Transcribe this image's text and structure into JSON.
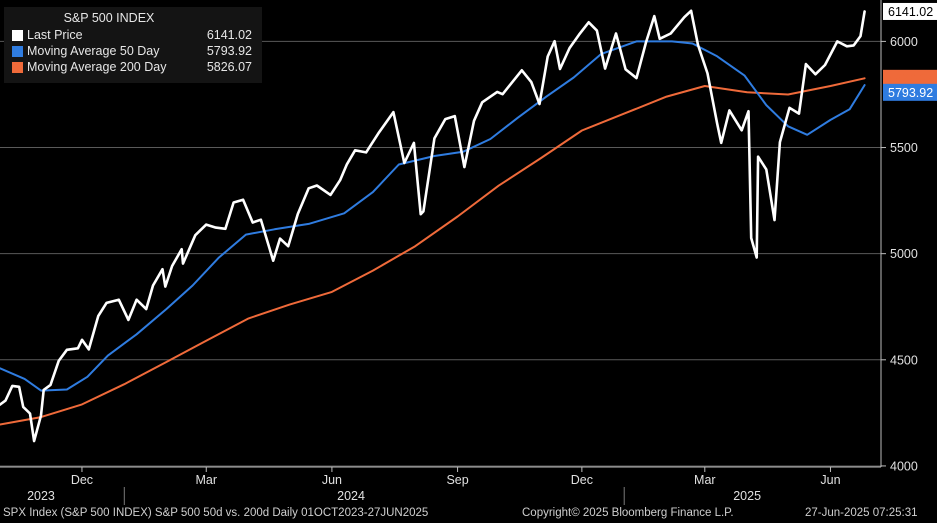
{
  "chart_data": {
    "type": "line",
    "title": "S&P 500 INDEX",
    "yticks": [
      4000,
      4500,
      5000,
      5500,
      6000
    ],
    "ylim": [
      3995,
      6195
    ],
    "xlim": [
      "2023-10-02",
      "2025-07-08"
    ],
    "grid": true,
    "legend_position": "top-left",
    "month_labels": [
      {
        "label": "Dec",
        "date": "2023-12-01"
      },
      {
        "label": "Mar",
        "date": "2024-03-01"
      },
      {
        "label": "Jun",
        "date": "2024-06-01"
      },
      {
        "label": "Sep",
        "date": "2024-09-01"
      },
      {
        "label": "Dec",
        "date": "2024-12-01"
      },
      {
        "label": "Mar",
        "date": "2025-03-01"
      },
      {
        "label": "Jun",
        "date": "2025-06-01"
      }
    ],
    "year_labels": [
      {
        "label": "2023",
        "date": "2023-11-01"
      },
      {
        "label": "2024",
        "date": "2024-06-15"
      },
      {
        "label": "2025",
        "date": "2025-04-01"
      }
    ],
    "year_separators": [
      "2024-01-01",
      "2025-01-01"
    ],
    "series": [
      {
        "name": "Last Price",
        "color": "#ffffff",
        "last_value_label": "6141.02",
        "points": [
          [
            "2023-10-02",
            4289
          ],
          [
            "2023-10-06",
            4308
          ],
          [
            "2023-10-11",
            4377
          ],
          [
            "2023-10-16",
            4373
          ],
          [
            "2023-10-19",
            4278
          ],
          [
            "2023-10-24",
            4247
          ],
          [
            "2023-10-27",
            4117
          ],
          [
            "2023-11-01",
            4238
          ],
          [
            "2023-11-03",
            4358
          ],
          [
            "2023-11-08",
            4382
          ],
          [
            "2023-11-14",
            4495
          ],
          [
            "2023-11-20",
            4547
          ],
          [
            "2023-11-28",
            4554
          ],
          [
            "2023-12-01",
            4594
          ],
          [
            "2023-12-06",
            4549
          ],
          [
            "2023-12-13",
            4707
          ],
          [
            "2023-12-19",
            4768
          ],
          [
            "2023-12-28",
            4783
          ],
          [
            "2024-01-04",
            4688
          ],
          [
            "2024-01-10",
            4783
          ],
          [
            "2024-01-17",
            4739
          ],
          [
            "2024-01-22",
            4850
          ],
          [
            "2024-01-29",
            4927
          ],
          [
            "2024-01-31",
            4845
          ],
          [
            "2024-02-05",
            4942
          ],
          [
            "2024-02-12",
            5021
          ],
          [
            "2024-02-13",
            4953
          ],
          [
            "2024-02-22",
            5087
          ],
          [
            "2024-03-01",
            5137
          ],
          [
            "2024-03-08",
            5123
          ],
          [
            "2024-03-15",
            5117
          ],
          [
            "2024-03-21",
            5241
          ],
          [
            "2024-03-28",
            5254
          ],
          [
            "2024-04-04",
            5147
          ],
          [
            "2024-04-10",
            5160
          ],
          [
            "2024-04-19",
            4967
          ],
          [
            "2024-04-24",
            5071
          ],
          [
            "2024-04-30",
            5035
          ],
          [
            "2024-05-07",
            5187
          ],
          [
            "2024-05-15",
            5308
          ],
          [
            "2024-05-21",
            5321
          ],
          [
            "2024-05-31",
            5277
          ],
          [
            "2024-06-07",
            5346
          ],
          [
            "2024-06-12",
            5421
          ],
          [
            "2024-06-18",
            5487
          ],
          [
            "2024-06-26",
            5477
          ],
          [
            "2024-07-05",
            5567
          ],
          [
            "2024-07-16",
            5667
          ],
          [
            "2024-07-24",
            5427
          ],
          [
            "2024-07-31",
            5522
          ],
          [
            "2024-08-05",
            5186
          ],
          [
            "2024-08-07",
            5199
          ],
          [
            "2024-08-15",
            5543
          ],
          [
            "2024-08-23",
            5634
          ],
          [
            "2024-08-30",
            5648
          ],
          [
            "2024-09-06",
            5408
          ],
          [
            "2024-09-13",
            5626
          ],
          [
            "2024-09-19",
            5713
          ],
          [
            "2024-09-30",
            5762
          ],
          [
            "2024-10-04",
            5751
          ],
          [
            "2024-10-18",
            5864
          ],
          [
            "2024-10-25",
            5808
          ],
          [
            "2024-10-31",
            5705
          ],
          [
            "2024-11-06",
            5929
          ],
          [
            "2024-11-11",
            6001
          ],
          [
            "2024-11-15",
            5870
          ],
          [
            "2024-11-22",
            5969
          ],
          [
            "2024-11-29",
            6032
          ],
          [
            "2024-12-06",
            6090
          ],
          [
            "2024-12-12",
            6051
          ],
          [
            "2024-12-18",
            5872
          ],
          [
            "2024-12-26",
            6037
          ],
          [
            "2025-01-02",
            5868
          ],
          [
            "2025-01-10",
            5827
          ],
          [
            "2025-01-17",
            5997
          ],
          [
            "2025-01-23",
            6119
          ],
          [
            "2025-01-27",
            6012
          ],
          [
            "2025-02-04",
            6037
          ],
          [
            "2025-02-14",
            6114
          ],
          [
            "2025-02-19",
            6144
          ],
          [
            "2025-02-24",
            5983
          ],
          [
            "2025-03-03",
            5849
          ],
          [
            "2025-03-10",
            5614
          ],
          [
            "2025-03-13",
            5522
          ],
          [
            "2025-03-19",
            5675
          ],
          [
            "2025-03-28",
            5581
          ],
          [
            "2025-04-02",
            5671
          ],
          [
            "2025-04-04",
            5074
          ],
          [
            "2025-04-08",
            4982
          ],
          [
            "2025-04-09",
            5457
          ],
          [
            "2025-04-15",
            5397
          ],
          [
            "2025-04-21",
            5158
          ],
          [
            "2025-04-25",
            5525
          ],
          [
            "2025-05-02",
            5687
          ],
          [
            "2025-05-09",
            5660
          ],
          [
            "2025-05-14",
            5893
          ],
          [
            "2025-05-21",
            5845
          ],
          [
            "2025-05-28",
            5889
          ],
          [
            "2025-06-06",
            6000
          ],
          [
            "2025-06-13",
            5977
          ],
          [
            "2025-06-18",
            5981
          ],
          [
            "2025-06-23",
            6025
          ],
          [
            "2025-06-26",
            6141
          ]
        ]
      },
      {
        "name": "Moving Average 50 Day",
        "color": "#2f7ce0",
        "value": "5793.92",
        "last_value_label": "5793.92",
        "points": [
          [
            "2023-10-02",
            4460
          ],
          [
            "2023-10-20",
            4410
          ],
          [
            "2023-11-01",
            4355
          ],
          [
            "2023-11-20",
            4360
          ],
          [
            "2023-12-05",
            4420
          ],
          [
            "2023-12-20",
            4520
          ],
          [
            "2024-01-10",
            4620
          ],
          [
            "2024-02-01",
            4740
          ],
          [
            "2024-02-20",
            4850
          ],
          [
            "2024-03-10",
            4980
          ],
          [
            "2024-03-30",
            5090
          ],
          [
            "2024-04-20",
            5115
          ],
          [
            "2024-05-15",
            5140
          ],
          [
            "2024-06-10",
            5190
          ],
          [
            "2024-07-01",
            5290
          ],
          [
            "2024-07-20",
            5420
          ],
          [
            "2024-08-15",
            5460
          ],
          [
            "2024-09-05",
            5480
          ],
          [
            "2024-09-25",
            5540
          ],
          [
            "2024-10-15",
            5640
          ],
          [
            "2024-11-05",
            5740
          ],
          [
            "2024-11-25",
            5830
          ],
          [
            "2024-12-15",
            5940
          ],
          [
            "2025-01-10",
            6000
          ],
          [
            "2025-02-05",
            6000
          ],
          [
            "2025-02-20",
            5990
          ],
          [
            "2025-03-10",
            5930
          ],
          [
            "2025-03-30",
            5840
          ],
          [
            "2025-04-15",
            5700
          ],
          [
            "2025-05-01",
            5600
          ],
          [
            "2025-05-15",
            5560
          ],
          [
            "2025-06-01",
            5630
          ],
          [
            "2025-06-15",
            5680
          ],
          [
            "2025-06-26",
            5794
          ]
        ]
      },
      {
        "name": "Moving Average 200 Day",
        "color": "#ef6a3a",
        "value": "5826.07",
        "last_value_label": "5826.07",
        "points": [
          [
            "2023-10-02",
            4195
          ],
          [
            "2023-11-01",
            4230
          ],
          [
            "2023-12-01",
            4290
          ],
          [
            "2024-01-01",
            4385
          ],
          [
            "2024-02-01",
            4490
          ],
          [
            "2024-03-01",
            4590
          ],
          [
            "2024-04-01",
            4695
          ],
          [
            "2024-05-01",
            4760
          ],
          [
            "2024-06-01",
            4820
          ],
          [
            "2024-07-01",
            4920
          ],
          [
            "2024-08-01",
            5035
          ],
          [
            "2024-09-01",
            5175
          ],
          [
            "2024-10-01",
            5320
          ],
          [
            "2024-11-01",
            5450
          ],
          [
            "2024-12-01",
            5580
          ],
          [
            "2025-01-01",
            5660
          ],
          [
            "2025-02-01",
            5740
          ],
          [
            "2025-03-01",
            5790
          ],
          [
            "2025-04-01",
            5760
          ],
          [
            "2025-05-01",
            5750
          ],
          [
            "2025-06-01",
            5790
          ],
          [
            "2025-06-26",
            5826
          ]
        ]
      }
    ]
  },
  "footer": {
    "left": "SPX Index (S&P 500 INDEX) S&P 500 50d vs. 200d  Daily 01OCT2023-27JUN2025",
    "center": "Copyright© 2025 Bloomberg Finance L.P.",
    "right": "27-Jun-2025 07:25:31"
  }
}
